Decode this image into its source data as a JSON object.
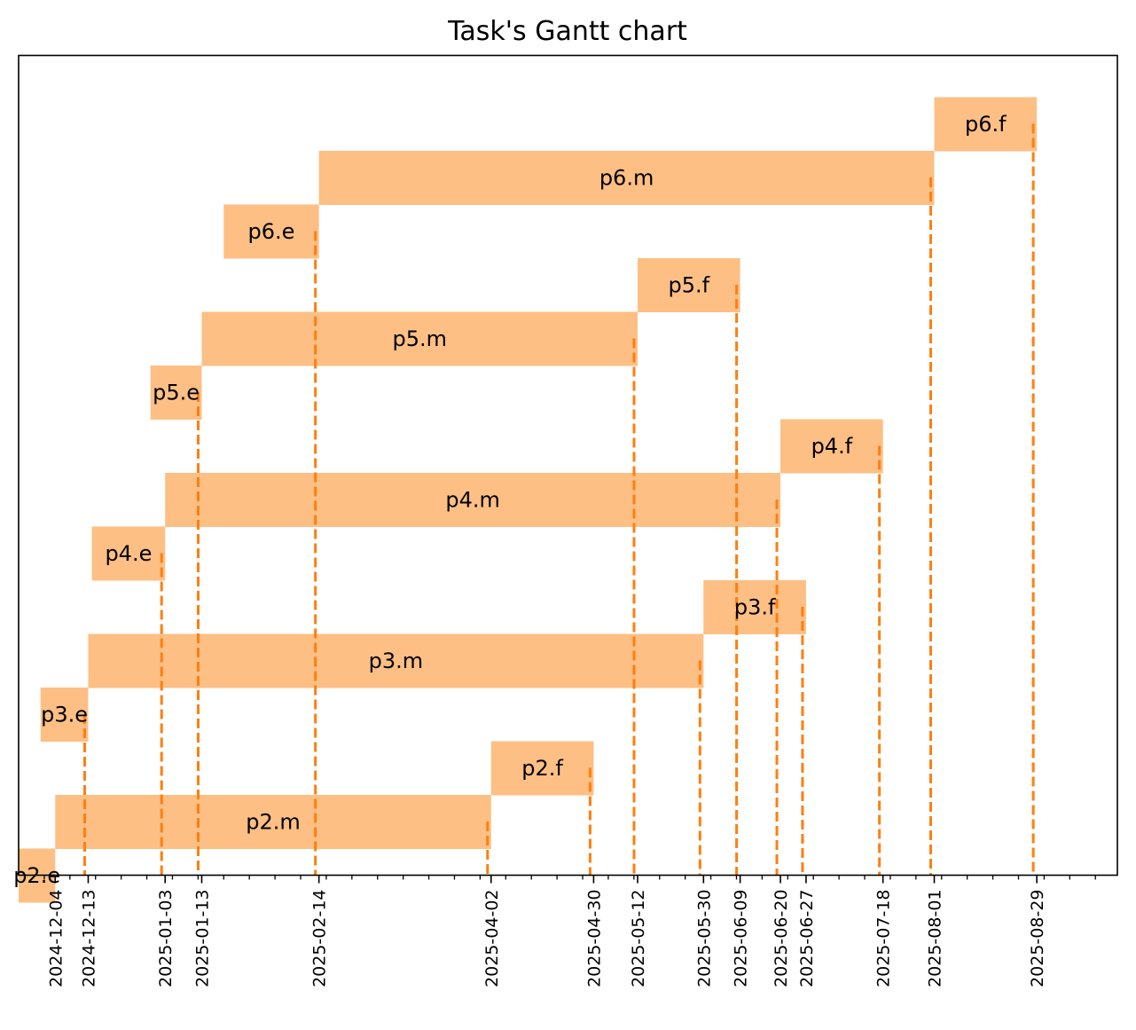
{
  "chart_data": {
    "type": "gantt",
    "title": "Task's Gantt chart",
    "bar_color": "#fdbf84",
    "marker_color": "#ff7f0e",
    "grid": false,
    "xlim": [
      "2024-11-24",
      "2025-09-20"
    ],
    "tasks": [
      {
        "label": "p2.e",
        "start": "2024-11-24",
        "end": "2024-12-04"
      },
      {
        "label": "p2.m",
        "start": "2024-12-04",
        "end": "2025-04-02"
      },
      {
        "label": "p2.f",
        "start": "2025-04-02",
        "end": "2025-04-30"
      },
      {
        "label": "p3.e",
        "start": "2024-11-30",
        "end": "2024-12-13"
      },
      {
        "label": "p3.m",
        "start": "2024-12-13",
        "end": "2025-05-30"
      },
      {
        "label": "p3.f",
        "start": "2025-05-30",
        "end": "2025-06-27"
      },
      {
        "label": "p4.e",
        "start": "2024-12-14",
        "end": "2025-01-03"
      },
      {
        "label": "p4.m",
        "start": "2025-01-03",
        "end": "2025-06-20"
      },
      {
        "label": "p4.f",
        "start": "2025-06-20",
        "end": "2025-07-18"
      },
      {
        "label": "p5.e",
        "start": "2024-12-30",
        "end": "2025-01-13"
      },
      {
        "label": "p5.m",
        "start": "2025-01-13",
        "end": "2025-05-12"
      },
      {
        "label": "p5.f",
        "start": "2025-05-12",
        "end": "2025-06-09"
      },
      {
        "label": "p6.e",
        "start": "2025-01-19",
        "end": "2025-02-14"
      },
      {
        "label": "p6.m",
        "start": "2025-02-14",
        "end": "2025-08-01"
      },
      {
        "label": "p6.f",
        "start": "2025-08-01",
        "end": "2025-08-29"
      }
    ],
    "tick_labels": [
      "2024-12-04",
      "2024-12-13",
      "2025-01-03",
      "2025-01-13",
      "2025-02-14",
      "2025-04-02",
      "2025-04-30",
      "2025-05-12",
      "2025-05-30",
      "2025-06-09",
      "2025-06-20",
      "2025-06-27",
      "2025-07-18",
      "2025-08-01",
      "2025-08-29"
    ]
  }
}
